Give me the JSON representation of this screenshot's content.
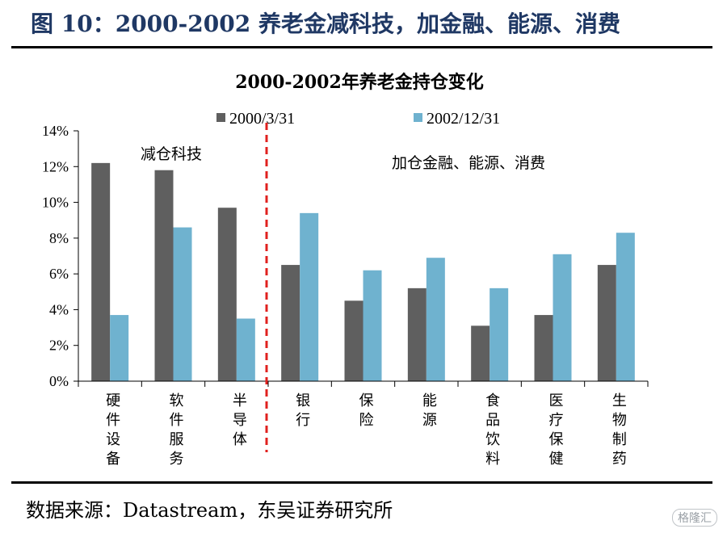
{
  "figure": {
    "title": "图 10：2000-2002 养老金减科技，加金融、能源、消费",
    "source": "数据来源：Datastream，东吴证券研究所",
    "watermark": "格隆汇"
  },
  "chart_data": {
    "type": "bar",
    "title": "2000-2002年养老金持仓变化",
    "xlabel": "",
    "ylabel": "",
    "ylim": [
      0,
      14
    ],
    "yticks": [
      "0%",
      "2%",
      "4%",
      "6%",
      "8%",
      "10%",
      "12%",
      "14%"
    ],
    "ytick_values": [
      0,
      2,
      4,
      6,
      8,
      10,
      12,
      14
    ],
    "grid": false,
    "legend_position": "top",
    "categories": [
      "硬件设备",
      "软件服务",
      "半导体",
      "银行",
      "保险",
      "能源",
      "食品饮料",
      "医疗保健",
      "生物制药"
    ],
    "series": [
      {
        "name": "2000/3/31",
        "color": "#5f5f5f",
        "values": [
          12.2,
          11.8,
          9.7,
          6.5,
          4.5,
          5.2,
          3.1,
          3.7,
          6.5
        ]
      },
      {
        "name": "2002/12/31",
        "color": "#6fb2cf",
        "values": [
          3.7,
          8.6,
          3.5,
          9.4,
          6.2,
          6.9,
          5.2,
          7.1,
          8.3
        ]
      }
    ],
    "annotations": [
      "减仓科技",
      "加仓金融、能源、消费"
    ],
    "divider_after_category": 3,
    "divider_color": "#e0201e"
  }
}
